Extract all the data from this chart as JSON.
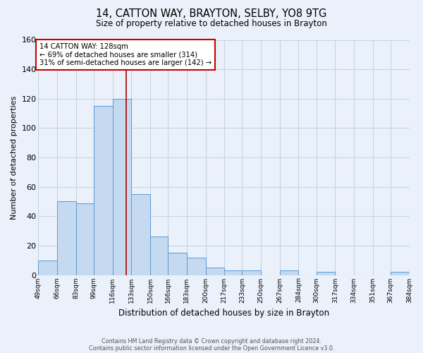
{
  "title": "14, CATTON WAY, BRAYTON, SELBY, YO8 9TG",
  "subtitle": "Size of property relative to detached houses in Brayton",
  "xlabel": "Distribution of detached houses by size in Brayton",
  "ylabel": "Number of detached properties",
  "bar_edges": [
    49,
    66,
    83,
    99,
    116,
    133,
    150,
    166,
    183,
    200,
    217,
    233,
    250,
    267,
    284,
    300,
    317,
    334,
    351,
    367,
    384
  ],
  "bar_heights": [
    10,
    50,
    49,
    115,
    120,
    55,
    26,
    15,
    12,
    5,
    3,
    3,
    0,
    3,
    0,
    2,
    0,
    0,
    0,
    2
  ],
  "bar_color": "#c5d9f1",
  "bar_edge_color": "#5b9bd5",
  "property_value": 128,
  "vline_color": "#aa0000",
  "ylim": [
    0,
    160
  ],
  "annotation_title": "14 CATTON WAY: 128sqm",
  "annotation_line1": "← 69% of detached houses are smaller (314)",
  "annotation_line2": "31% of semi-detached houses are larger (142) →",
  "annotation_box_color": "#ffffff",
  "annotation_box_edge": "#cc0000",
  "grid_color": "#c8d4e3",
  "background_color": "#eaf1fb",
  "footer1": "Contains HM Land Registry data © Crown copyright and database right 2024.",
  "footer2": "Contains public sector information licensed under the Open Government Licence v3.0."
}
